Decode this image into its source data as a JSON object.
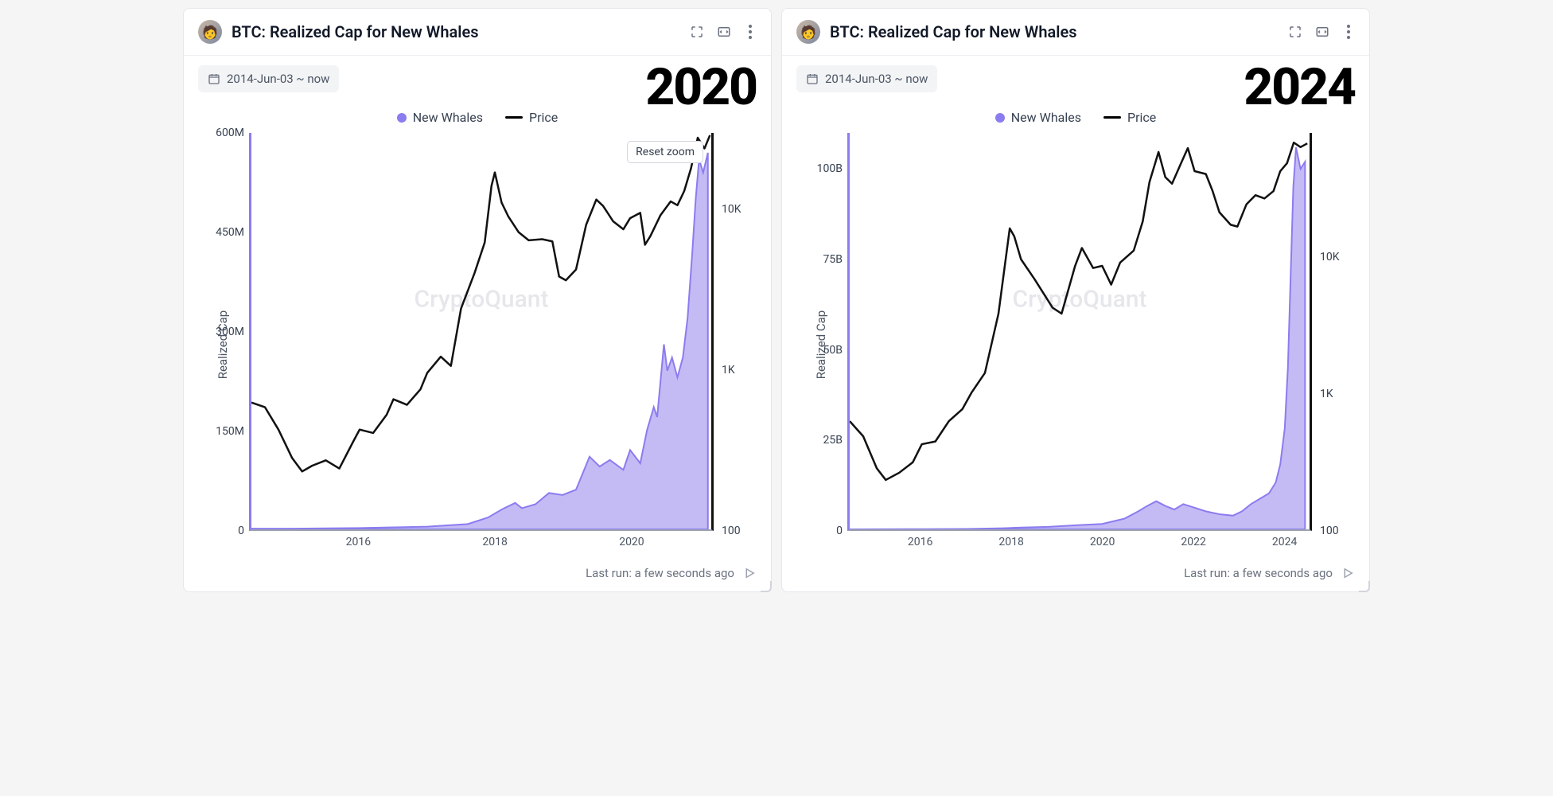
{
  "colors": {
    "area_fill": "#b0a4f2",
    "area_stroke": "#8b7cf0",
    "price_stroke": "#111111",
    "card_bg": "#ffffff",
    "border": "#e5e7eb",
    "text_muted": "#6b7280",
    "watermark": "#e5e7eb"
  },
  "common": {
    "title": "BTC: Realized Cap for New Whales",
    "date_range": "2014-Jun-03 ~ now",
    "legend_new_whales": "New Whales",
    "legend_price": "Price",
    "ylabel": "Realized Cap",
    "watermark": "CryptoQuant",
    "footer_text": "Last run: a few seconds ago",
    "reset_zoom": "Reset zoom"
  },
  "panels": [
    {
      "overlay_year": "2020",
      "show_reset_zoom": true,
      "left_axis": {
        "min": 0,
        "max": 600,
        "ticks": [
          {
            "v": 0,
            "label": "0"
          },
          {
            "v": 150,
            "label": "150M"
          },
          {
            "v": 300,
            "label": "300M"
          },
          {
            "v": 450,
            "label": "450M"
          },
          {
            "v": 600,
            "label": "600M"
          }
        ]
      },
      "right_axis": {
        "type": "log",
        "min": 100,
        "max": 30000,
        "ticks": [
          {
            "v": 100,
            "label": "100"
          },
          {
            "v": 1000,
            "label": "1K"
          },
          {
            "v": 10000,
            "label": "10K"
          }
        ]
      },
      "x_axis": {
        "min": 2014.4,
        "max": 2021.2,
        "ticks": [
          {
            "v": 2016,
            "label": "2016"
          },
          {
            "v": 2018,
            "label": "2018"
          },
          {
            "v": 2020,
            "label": "2020"
          }
        ]
      },
      "area_series": [
        [
          2014.4,
          1
        ],
        [
          2015.0,
          1
        ],
        [
          2015.5,
          1.5
        ],
        [
          2016.0,
          2
        ],
        [
          2016.5,
          3
        ],
        [
          2017.0,
          4
        ],
        [
          2017.3,
          6
        ],
        [
          2017.6,
          8
        ],
        [
          2017.9,
          18
        ],
        [
          2018.1,
          30
        ],
        [
          2018.3,
          40
        ],
        [
          2018.4,
          32
        ],
        [
          2018.6,
          38
        ],
        [
          2018.8,
          55
        ],
        [
          2019.0,
          52
        ],
        [
          2019.2,
          60
        ],
        [
          2019.4,
          110
        ],
        [
          2019.55,
          95
        ],
        [
          2019.7,
          105
        ],
        [
          2019.9,
          90
        ],
        [
          2020.0,
          120
        ],
        [
          2020.15,
          100
        ],
        [
          2020.25,
          150
        ],
        [
          2020.35,
          185
        ],
        [
          2020.4,
          170
        ],
        [
          2020.5,
          280
        ],
        [
          2020.55,
          240
        ],
        [
          2020.62,
          260
        ],
        [
          2020.7,
          230
        ],
        [
          2020.78,
          260
        ],
        [
          2020.85,
          320
        ],
        [
          2020.92,
          420
        ],
        [
          2020.97,
          500
        ],
        [
          2021.02,
          560
        ],
        [
          2021.08,
          540
        ],
        [
          2021.15,
          570
        ]
      ],
      "price_series": [
        [
          2014.4,
          620
        ],
        [
          2014.6,
          580
        ],
        [
          2014.8,
          420
        ],
        [
          2015.0,
          280
        ],
        [
          2015.15,
          230
        ],
        [
          2015.3,
          250
        ],
        [
          2015.5,
          270
        ],
        [
          2015.7,
          240
        ],
        [
          2015.9,
          350
        ],
        [
          2016.0,
          420
        ],
        [
          2016.2,
          400
        ],
        [
          2016.4,
          520
        ],
        [
          2016.5,
          650
        ],
        [
          2016.7,
          600
        ],
        [
          2016.9,
          750
        ],
        [
          2017.0,
          950
        ],
        [
          2017.2,
          1200
        ],
        [
          2017.35,
          1050
        ],
        [
          2017.5,
          2400
        ],
        [
          2017.7,
          4000
        ],
        [
          2017.85,
          6200
        ],
        [
          2017.95,
          14000
        ],
        [
          2018.0,
          17000
        ],
        [
          2018.1,
          11000
        ],
        [
          2018.2,
          9000
        ],
        [
          2018.35,
          7200
        ],
        [
          2018.5,
          6400
        ],
        [
          2018.7,
          6500
        ],
        [
          2018.85,
          6300
        ],
        [
          2018.95,
          3800
        ],
        [
          2019.05,
          3600
        ],
        [
          2019.2,
          4200
        ],
        [
          2019.35,
          8000
        ],
        [
          2019.5,
          11500
        ],
        [
          2019.6,
          10500
        ],
        [
          2019.75,
          8400
        ],
        [
          2019.9,
          7500
        ],
        [
          2020.0,
          8800
        ],
        [
          2020.15,
          9500
        ],
        [
          2020.22,
          6000
        ],
        [
          2020.3,
          6800
        ],
        [
          2020.45,
          9200
        ],
        [
          2020.6,
          11200
        ],
        [
          2020.7,
          10600
        ],
        [
          2020.8,
          13000
        ],
        [
          2020.9,
          18000
        ],
        [
          2021.0,
          28000
        ],
        [
          2021.1,
          24000
        ],
        [
          2021.18,
          29000
        ]
      ]
    },
    {
      "overlay_year": "2024",
      "show_reset_zoom": false,
      "left_axis": {
        "min": 0,
        "max": 110,
        "ticks": [
          {
            "v": 0,
            "label": "0"
          },
          {
            "v": 25,
            "label": "25B"
          },
          {
            "v": 50,
            "label": "50B"
          },
          {
            "v": 75,
            "label": "75B"
          },
          {
            "v": 100,
            "label": "100B"
          }
        ]
      },
      "right_axis": {
        "type": "log",
        "min": 100,
        "max": 80000,
        "ticks": [
          {
            "v": 100,
            "label": "100"
          },
          {
            "v": 1000,
            "label": "1K"
          },
          {
            "v": 10000,
            "label": "10K"
          }
        ]
      },
      "x_axis": {
        "min": 2014.4,
        "max": 2024.6,
        "ticks": [
          {
            "v": 2016,
            "label": "2016"
          },
          {
            "v": 2018,
            "label": "2018"
          },
          {
            "v": 2020,
            "label": "2020"
          },
          {
            "v": 2022,
            "label": "2022"
          },
          {
            "v": 2024,
            "label": "2024"
          }
        ]
      },
      "area_series": [
        [
          2014.4,
          0.01
        ],
        [
          2016.0,
          0.05
        ],
        [
          2017.0,
          0.1
        ],
        [
          2017.8,
          0.3
        ],
        [
          2018.2,
          0.5
        ],
        [
          2018.8,
          0.7
        ],
        [
          2019.5,
          1.2
        ],
        [
          2020.0,
          1.5
        ],
        [
          2020.5,
          3
        ],
        [
          2020.8,
          5
        ],
        [
          2021.0,
          6.5
        ],
        [
          2021.2,
          7.8
        ],
        [
          2021.4,
          6.5
        ],
        [
          2021.6,
          5.5
        ],
        [
          2021.8,
          7
        ],
        [
          2022.0,
          6.2
        ],
        [
          2022.3,
          5
        ],
        [
          2022.6,
          4.2
        ],
        [
          2022.9,
          3.8
        ],
        [
          2023.1,
          5
        ],
        [
          2023.3,
          7
        ],
        [
          2023.5,
          8.5
        ],
        [
          2023.7,
          10
        ],
        [
          2023.85,
          13
        ],
        [
          2023.95,
          18
        ],
        [
          2024.05,
          28
        ],
        [
          2024.12,
          45
        ],
        [
          2024.18,
          70
        ],
        [
          2024.24,
          95
        ],
        [
          2024.3,
          106
        ],
        [
          2024.4,
          100
        ],
        [
          2024.5,
          102
        ]
      ],
      "price_series": [
        [
          2014.4,
          620
        ],
        [
          2014.7,
          480
        ],
        [
          2015.0,
          280
        ],
        [
          2015.2,
          230
        ],
        [
          2015.5,
          260
        ],
        [
          2015.8,
          310
        ],
        [
          2016.0,
          420
        ],
        [
          2016.3,
          440
        ],
        [
          2016.6,
          620
        ],
        [
          2016.9,
          760
        ],
        [
          2017.1,
          1000
        ],
        [
          2017.4,
          1400
        ],
        [
          2017.7,
          3800
        ],
        [
          2017.95,
          16000
        ],
        [
          2018.05,
          14000
        ],
        [
          2018.2,
          9500
        ],
        [
          2018.5,
          6800
        ],
        [
          2018.9,
          4200
        ],
        [
          2019.1,
          3800
        ],
        [
          2019.4,
          8500
        ],
        [
          2019.55,
          11500
        ],
        [
          2019.8,
          8200
        ],
        [
          2020.0,
          8500
        ],
        [
          2020.2,
          6200
        ],
        [
          2020.4,
          9000
        ],
        [
          2020.7,
          11000
        ],
        [
          2020.9,
          18000
        ],
        [
          2021.05,
          35000
        ],
        [
          2021.25,
          58000
        ],
        [
          2021.4,
          38000
        ],
        [
          2021.55,
          34000
        ],
        [
          2021.75,
          48000
        ],
        [
          2021.9,
          62000
        ],
        [
          2022.05,
          42000
        ],
        [
          2022.3,
          40000
        ],
        [
          2022.45,
          30000
        ],
        [
          2022.6,
          21000
        ],
        [
          2022.85,
          17000
        ],
        [
          2023.0,
          16500
        ],
        [
          2023.2,
          24000
        ],
        [
          2023.4,
          28000
        ],
        [
          2023.6,
          26500
        ],
        [
          2023.8,
          30000
        ],
        [
          2023.95,
          42000
        ],
        [
          2024.1,
          48000
        ],
        [
          2024.25,
          68000
        ],
        [
          2024.4,
          63000
        ],
        [
          2024.55,
          67000
        ]
      ]
    }
  ]
}
